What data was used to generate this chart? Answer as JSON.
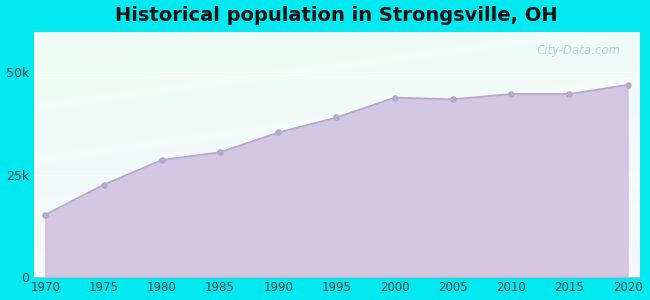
{
  "title": "Historical population in Strongsville, OH",
  "years": [
    1970,
    1975,
    1980,
    1985,
    1990,
    1995,
    2000,
    2005,
    2010,
    2015,
    2020
  ],
  "population": [
    15182,
    22505,
    28577,
    30468,
    35308,
    38988,
    43858,
    43444,
    44750,
    44730,
    46992
  ],
  "ylim": [
    0,
    60000
  ],
  "ytick_labels": [
    "0",
    "25k",
    "50k"
  ],
  "ytick_values": [
    0,
    25000,
    50000
  ],
  "line_color": "#b8a8cc",
  "fill_color": "#c8b8dc",
  "fill_alpha": 0.75,
  "marker_color": "#b8a8cc",
  "bg_outer": "#00e8f0",
  "title_fontsize": 14,
  "watermark": "City-Data.com"
}
